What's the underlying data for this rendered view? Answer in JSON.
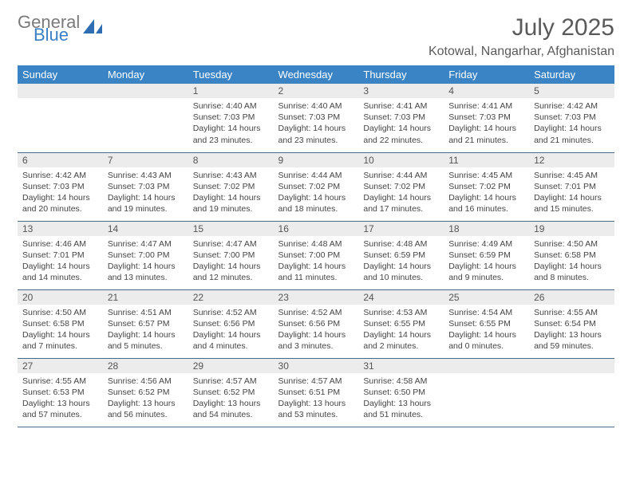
{
  "logo": {
    "word1": "General",
    "word2": "Blue",
    "shape_color": "#2f6db3"
  },
  "title": "July 2025",
  "location": "Kotowal, Nangarhar, Afghanistan",
  "colors": {
    "header_bg": "#3a84c5",
    "header_text": "#ffffff",
    "daynum_bg": "#ececec",
    "body_text": "#444444",
    "rule": "#4a6a8a"
  },
  "weekdays": [
    "Sunday",
    "Monday",
    "Tuesday",
    "Wednesday",
    "Thursday",
    "Friday",
    "Saturday"
  ],
  "weeks": [
    [
      null,
      null,
      {
        "n": "1",
        "sr": "4:40 AM",
        "ss": "7:03 PM",
        "dl": "14 hours and 23 minutes."
      },
      {
        "n": "2",
        "sr": "4:40 AM",
        "ss": "7:03 PM",
        "dl": "14 hours and 23 minutes."
      },
      {
        "n": "3",
        "sr": "4:41 AM",
        "ss": "7:03 PM",
        "dl": "14 hours and 22 minutes."
      },
      {
        "n": "4",
        "sr": "4:41 AM",
        "ss": "7:03 PM",
        "dl": "14 hours and 21 minutes."
      },
      {
        "n": "5",
        "sr": "4:42 AM",
        "ss": "7:03 PM",
        "dl": "14 hours and 21 minutes."
      }
    ],
    [
      {
        "n": "6",
        "sr": "4:42 AM",
        "ss": "7:03 PM",
        "dl": "14 hours and 20 minutes."
      },
      {
        "n": "7",
        "sr": "4:43 AM",
        "ss": "7:03 PM",
        "dl": "14 hours and 19 minutes."
      },
      {
        "n": "8",
        "sr": "4:43 AM",
        "ss": "7:02 PM",
        "dl": "14 hours and 19 minutes."
      },
      {
        "n": "9",
        "sr": "4:44 AM",
        "ss": "7:02 PM",
        "dl": "14 hours and 18 minutes."
      },
      {
        "n": "10",
        "sr": "4:44 AM",
        "ss": "7:02 PM",
        "dl": "14 hours and 17 minutes."
      },
      {
        "n": "11",
        "sr": "4:45 AM",
        "ss": "7:02 PM",
        "dl": "14 hours and 16 minutes."
      },
      {
        "n": "12",
        "sr": "4:45 AM",
        "ss": "7:01 PM",
        "dl": "14 hours and 15 minutes."
      }
    ],
    [
      {
        "n": "13",
        "sr": "4:46 AM",
        "ss": "7:01 PM",
        "dl": "14 hours and 14 minutes."
      },
      {
        "n": "14",
        "sr": "4:47 AM",
        "ss": "7:00 PM",
        "dl": "14 hours and 13 minutes."
      },
      {
        "n": "15",
        "sr": "4:47 AM",
        "ss": "7:00 PM",
        "dl": "14 hours and 12 minutes."
      },
      {
        "n": "16",
        "sr": "4:48 AM",
        "ss": "7:00 PM",
        "dl": "14 hours and 11 minutes."
      },
      {
        "n": "17",
        "sr": "4:48 AM",
        "ss": "6:59 PM",
        "dl": "14 hours and 10 minutes."
      },
      {
        "n": "18",
        "sr": "4:49 AM",
        "ss": "6:59 PM",
        "dl": "14 hours and 9 minutes."
      },
      {
        "n": "19",
        "sr": "4:50 AM",
        "ss": "6:58 PM",
        "dl": "14 hours and 8 minutes."
      }
    ],
    [
      {
        "n": "20",
        "sr": "4:50 AM",
        "ss": "6:58 PM",
        "dl": "14 hours and 7 minutes."
      },
      {
        "n": "21",
        "sr": "4:51 AM",
        "ss": "6:57 PM",
        "dl": "14 hours and 5 minutes."
      },
      {
        "n": "22",
        "sr": "4:52 AM",
        "ss": "6:56 PM",
        "dl": "14 hours and 4 minutes."
      },
      {
        "n": "23",
        "sr": "4:52 AM",
        "ss": "6:56 PM",
        "dl": "14 hours and 3 minutes."
      },
      {
        "n": "24",
        "sr": "4:53 AM",
        "ss": "6:55 PM",
        "dl": "14 hours and 2 minutes."
      },
      {
        "n": "25",
        "sr": "4:54 AM",
        "ss": "6:55 PM",
        "dl": "14 hours and 0 minutes."
      },
      {
        "n": "26",
        "sr": "4:55 AM",
        "ss": "6:54 PM",
        "dl": "13 hours and 59 minutes."
      }
    ],
    [
      {
        "n": "27",
        "sr": "4:55 AM",
        "ss": "6:53 PM",
        "dl": "13 hours and 57 minutes."
      },
      {
        "n": "28",
        "sr": "4:56 AM",
        "ss": "6:52 PM",
        "dl": "13 hours and 56 minutes."
      },
      {
        "n": "29",
        "sr": "4:57 AM",
        "ss": "6:52 PM",
        "dl": "13 hours and 54 minutes."
      },
      {
        "n": "30",
        "sr": "4:57 AM",
        "ss": "6:51 PM",
        "dl": "13 hours and 53 minutes."
      },
      {
        "n": "31",
        "sr": "4:58 AM",
        "ss": "6:50 PM",
        "dl": "13 hours and 51 minutes."
      },
      null,
      null
    ]
  ],
  "labels": {
    "sunrise": "Sunrise:",
    "sunset": "Sunset:",
    "daylight": "Daylight:"
  }
}
